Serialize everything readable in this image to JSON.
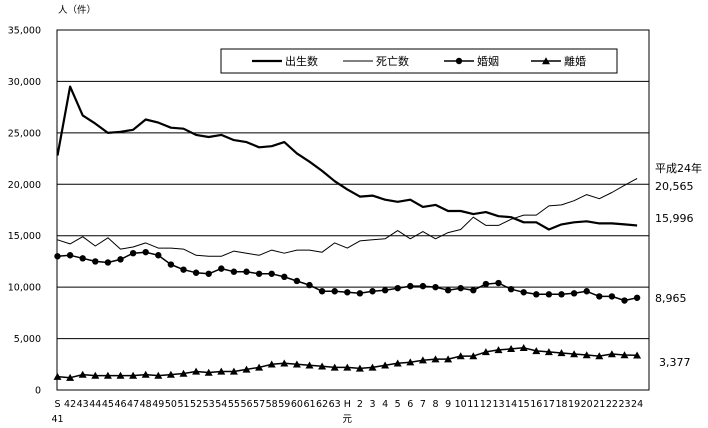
{
  "chart_data": {
    "type": "line",
    "unit_label": "人（件）",
    "ylim": [
      0,
      35000
    ],
    "y_ticks": [
      "0",
      "5,000",
      "10,000",
      "15,000",
      "20,000",
      "25,000",
      "30,000",
      "35,000"
    ],
    "y_tick_values": [
      0,
      5000,
      10000,
      15000,
      20000,
      25000,
      30000,
      35000
    ],
    "x_labels_top": [
      "S",
      "42",
      "43",
      "44",
      "45",
      "46",
      "47",
      "48",
      "49",
      "50",
      "51",
      "52",
      "53",
      "54",
      "55",
      "56",
      "57",
      "58",
      "59",
      "60",
      "61",
      "62",
      "63",
      "H",
      "2",
      "3",
      "4",
      "5",
      "6",
      "7",
      "8",
      "9",
      "10",
      "11",
      "12",
      "13",
      "14",
      "15",
      "16",
      "17",
      "18",
      "19",
      "20",
      "21",
      "22",
      "23",
      "24"
    ],
    "x_labels_bottom": [
      "41",
      "",
      "",
      "",
      "",
      "",
      "",
      "",
      "",
      "",
      "",
      "",
      "",
      "",
      "",
      "",
      "",
      "",
      "",
      "",
      "",
      "",
      "",
      "元",
      "",
      "",
      "",
      "",
      "",
      "",
      "",
      "",
      "",
      "",
      "",
      "",
      "",
      "",
      "",
      "",
      "",
      "",
      "",
      "",
      "",
      "",
      ""
    ],
    "grid": "horizontal",
    "legend_position": "top-right",
    "series": [
      {
        "name": "出生数",
        "marker": "none",
        "color": "#000000",
        "values": [
          22800,
          29500,
          26700,
          25900,
          25000,
          25100,
          25300,
          26300,
          26000,
          25500,
          25400,
          24800,
          24600,
          24800,
          24300,
          24100,
          23600,
          23700,
          24100,
          23000,
          22200,
          21300,
          20300,
          19500,
          18800,
          18900,
          18500,
          18300,
          18500,
          17800,
          18000,
          17400,
          17400,
          17100,
          17300,
          16900,
          16800,
          16300,
          16300,
          15600,
          16100,
          16300,
          16400,
          16200,
          16200,
          16100,
          15996
        ]
      },
      {
        "name": "死亡数",
        "marker": "none",
        "color": "#000000",
        "values": [
          14600,
          14200,
          14900,
          14000,
          14800,
          13700,
          13900,
          14300,
          13800,
          13800,
          13700,
          13100,
          13000,
          13000,
          13500,
          13300,
          13100,
          13600,
          13300,
          13600,
          13600,
          13400,
          14300,
          13800,
          14500,
          14600,
          14700,
          15500,
          14700,
          15400,
          14700,
          15300,
          15600,
          16800,
          16000,
          16000,
          16600,
          17000,
          17000,
          17900,
          18000,
          18400,
          19000,
          18600,
          19200,
          19900,
          20565
        ]
      },
      {
        "name": "婚姻",
        "marker": "circle",
        "color": "#000000",
        "values": [
          13000,
          13100,
          12800,
          12500,
          12400,
          12700,
          13300,
          13400,
          13100,
          12200,
          11700,
          11400,
          11300,
          11800,
          11500,
          11500,
          11300,
          11300,
          11000,
          10600,
          10200,
          9600,
          9600,
          9500,
          9400,
          9600,
          9700,
          9900,
          10100,
          10100,
          10000,
          9700,
          9900,
          9700,
          10300,
          10400,
          9800,
          9500,
          9300,
          9300,
          9300,
          9400,
          9600,
          9100,
          9100,
          8700,
          8965
        ]
      },
      {
        "name": "離婚",
        "marker": "triangle",
        "color": "#000000",
        "values": [
          1300,
          1200,
          1500,
          1400,
          1400,
          1400,
          1400,
          1500,
          1400,
          1500,
          1600,
          1800,
          1700,
          1800,
          1800,
          2000,
          2200,
          2500,
          2600,
          2500,
          2400,
          2300,
          2200,
          2200,
          2100,
          2200,
          2400,
          2600,
          2700,
          2900,
          3000,
          3000,
          3300,
          3300,
          3700,
          3900,
          4000,
          4100,
          3800,
          3700,
          3600,
          3500,
          3400,
          3300,
          3500,
          3400,
          3377
        ]
      }
    ],
    "end_annotations": [
      {
        "series": "死亡数",
        "label_top": "平成24年",
        "label": "20,565"
      },
      {
        "series": "出生数",
        "label": "15,996"
      },
      {
        "series": "婚姻",
        "label": "8,965"
      },
      {
        "series": "離婚",
        "label": "3,377"
      }
    ]
  }
}
